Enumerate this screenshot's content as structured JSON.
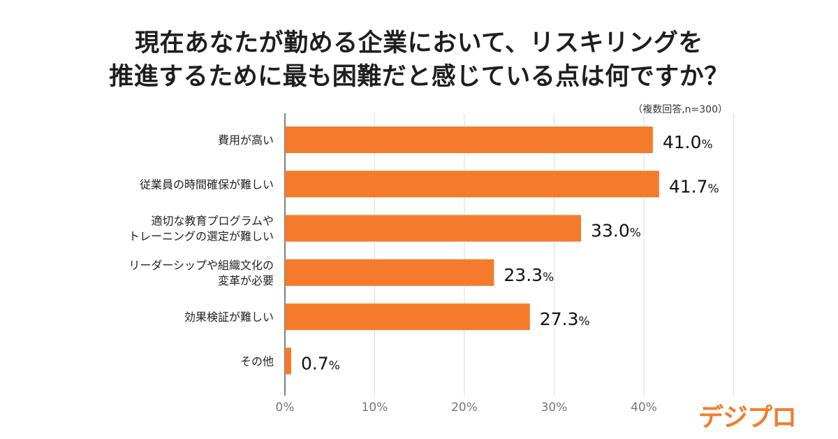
{
  "header": {
    "title_line1": "現在あなたが勤める企業において、リスキリングを",
    "title_line2": "推進するために最も困難だと感じている点は何ですか？",
    "note": "（複数回答,n=300）"
  },
  "brand": {
    "logo_text": "デジプロ",
    "accent_color": "#f47b2b"
  },
  "chart_data": {
    "type": "bar",
    "orientation": "horizontal",
    "title": "現在あなたが勤める企業において、リスキリングを推進するために最も困難だと感じている点は何ですか？",
    "note": "（複数回答,n=300）",
    "categories": [
      [
        "費用が高い"
      ],
      [
        "従業員の時間確保が難しい"
      ],
      [
        "適切な教育プログラムや",
        "トレーニングの選定が難しい"
      ],
      [
        "リーダーシップや組織文化の",
        "変革が必要"
      ],
      [
        "効果検証が難しい"
      ],
      [
        "その他"
      ]
    ],
    "values": [
      41.0,
      41.7,
      33.0,
      23.3,
      27.3,
      0.7
    ],
    "value_labels": [
      "41.0",
      "41.7",
      "33.0",
      "23.3",
      "27.3",
      "0.7"
    ],
    "unit": "%",
    "xlim": [
      0,
      50
    ],
    "ticks": [
      0,
      10,
      20,
      30,
      40
    ],
    "tick_labels": [
      "0%",
      "10%",
      "20%",
      "30%",
      "40%"
    ],
    "bar_color": "#f47b2b",
    "grid": true
  }
}
